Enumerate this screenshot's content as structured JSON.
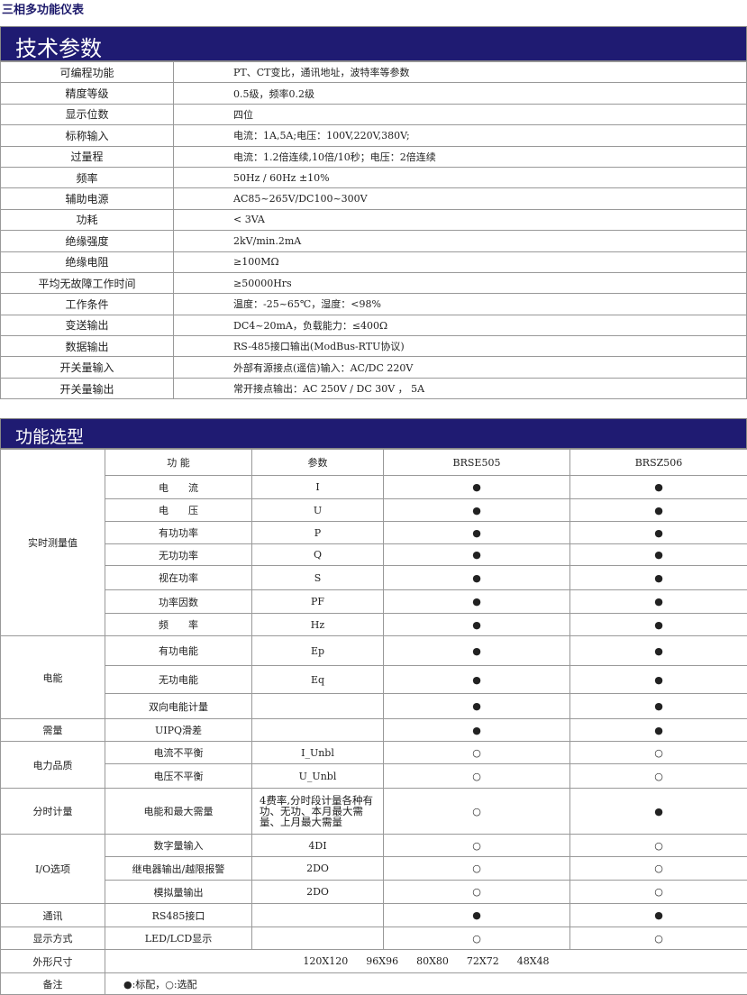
{
  "doc_title": "三相多功能仪表",
  "section1": {
    "title": "技术参数",
    "rows": [
      [
        "可编程功能",
        "PT、CT变比，通讯地址，波特率等参数"
      ],
      [
        "精度等级",
        "0.5级，频率0.2级"
      ],
      [
        "显示位数",
        "四位"
      ],
      [
        "标称输入",
        "电流：1A,5A;电压：100V,220V,380V;"
      ],
      [
        "过量程",
        "电流：1.2倍连续,10倍/10秒；电压：2倍连续"
      ],
      [
        "频率",
        "50Hz / 60Hz ±10%"
      ],
      [
        "辅助电源",
        "AC85~265V/DC100~300V"
      ],
      [
        "功耗",
        "< 3VA"
      ],
      [
        "绝缘强度",
        "2kV/min.2mA"
      ],
      [
        "绝缘电阻",
        "≥100MΩ"
      ],
      [
        "平均无故障工作时间",
        "≥50000Hrs"
      ],
      [
        "工作条件",
        "温度：-25~65℃，湿度：<98%"
      ],
      [
        "变送输出",
        "DC4~20mA，负载能力：≤400Ω"
      ],
      [
        "数据输出",
        "RS-485接口输出(ModBus-RTU协议)"
      ],
      [
        "开关量输入",
        "外部有源接点(遥信)输入：AC/DC 220V"
      ],
      [
        "开关量输出",
        "常开接点输出：AC 250V / DC 30V ， 5A"
      ]
    ]
  },
  "section2": {
    "title": "功能选型",
    "headers": [
      "功 能",
      "参数",
      "BRSE505",
      "BRSZ506"
    ],
    "groups": [
      {
        "name": "实时测量值",
        "rows": [
          [
            "电　　流",
            "I",
            "●",
            "●"
          ],
          [
            "电　　压",
            "U",
            "●",
            "●"
          ],
          [
            "有功功率",
            "P",
            "●",
            "●"
          ],
          [
            "无功功率",
            "Q",
            "●",
            "●"
          ],
          [
            "视在功率",
            "S",
            "●",
            "●"
          ],
          [
            "功率因数",
            "PF",
            "●",
            "●"
          ],
          [
            "频　　率",
            "Hz",
            "●",
            "●"
          ]
        ]
      },
      {
        "name": "电能",
        "rows": [
          [
            "有功电能",
            "Ep",
            "●",
            "●"
          ],
          [
            "无功电能",
            "Eq",
            "●",
            "●"
          ],
          [
            "双向电能计量",
            "",
            "●",
            "●"
          ]
        ]
      },
      {
        "name": "需量",
        "rows": [
          [
            "UIPQ滑差",
            "",
            "●",
            "●"
          ]
        ]
      },
      {
        "name": "电力品质",
        "rows": [
          [
            "电流不平衡",
            "I_Unbl",
            "○",
            "○"
          ],
          [
            "电压不平衡",
            "U_Unbl",
            "○",
            "○"
          ]
        ]
      },
      {
        "name": "分时计量",
        "rows": [
          [
            "电能和最大需量",
            "4费率,分时段计量各种有功、无功、本月最大需量、上月最大需量",
            "○",
            "●"
          ]
        ]
      },
      {
        "name": "I/O选项",
        "rows": [
          [
            "数字量输入",
            "4DI",
            "○",
            "○"
          ],
          [
            "继电器输出/越限报警",
            "2DO",
            "○",
            "○"
          ],
          [
            "模拟量输出",
            "2DO",
            "○",
            "○"
          ]
        ]
      },
      {
        "name": "通讯",
        "rows": [
          [
            "RS485接口",
            "",
            "●",
            "●"
          ]
        ]
      },
      {
        "name": "显示方式",
        "rows": [
          [
            "LED/LCD显示",
            "",
            "○",
            "○"
          ]
        ]
      }
    ],
    "size_label": "外形尺寸",
    "sizes": [
      "120X120",
      "96X96",
      "80X80",
      "72X72",
      "48X48"
    ],
    "note_label": "备注",
    "note": "●:标配，○:选配"
  }
}
